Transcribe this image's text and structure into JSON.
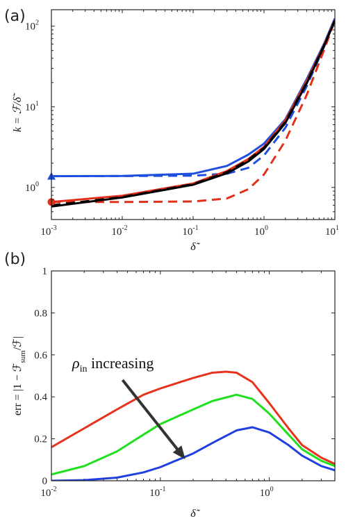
{
  "chart_data": [
    {
      "panel": "(a)",
      "type": "line",
      "xscale": "log",
      "yscale": "log",
      "xlim": [
        0.001,
        10
      ],
      "ylim": [
        0.4,
        160
      ],
      "xticks": [
        0.001,
        0.01,
        0.1,
        1,
        10
      ],
      "xtick_labels": [
        [
          "10",
          "-3"
        ],
        [
          "10",
          "-2"
        ],
        [
          "10",
          "-1"
        ],
        [
          "10",
          "0"
        ],
        [
          "10",
          "1"
        ]
      ],
      "yticks": [
        1,
        10,
        100
      ],
      "ytick_labels": [
        [
          "10",
          "0"
        ],
        [
          "10",
          "1"
        ],
        [
          "10",
          "2"
        ]
      ],
      "xlabel": "δ̃",
      "ylabel": "k = ℱ/δ̃",
      "grid": false,
      "series": [
        {
          "color": "#1f4fe0",
          "dash": "solid",
          "points": [
            [
              0.001,
              1.38
            ],
            [
              0.01,
              1.39
            ],
            [
              0.1,
              1.48
            ],
            [
              0.3,
              1.85
            ],
            [
              0.6,
              2.55
            ],
            [
              1,
              3.5
            ],
            [
              2,
              7.0
            ],
            [
              4,
              22
            ],
            [
              7,
              60
            ],
            [
              10,
              125
            ]
          ],
          "marker": "triangle",
          "marker_at": [
            0.001,
            1.38
          ]
        },
        {
          "color": "#1f4fe0",
          "dash": "dashed",
          "points": [
            [
              0.001,
              1.38
            ],
            [
              0.01,
              1.385
            ],
            [
              0.1,
              1.4
            ],
            [
              0.3,
              1.48
            ],
            [
              0.6,
              1.75
            ],
            [
              1,
              2.5
            ],
            [
              2,
              5.5
            ],
            [
              4,
              18
            ],
            [
              7,
              55
            ],
            [
              10,
              122
            ]
          ]
        },
        {
          "color": "#e2301b",
          "dash": "solid",
          "points": [
            [
              0.001,
              0.66
            ],
            [
              0.01,
              0.79
            ],
            [
              0.1,
              1.12
            ],
            [
              0.3,
              1.6
            ],
            [
              0.6,
              2.25
            ],
            [
              1,
              3.2
            ],
            [
              2,
              6.8
            ],
            [
              4,
              21
            ],
            [
              7,
              58
            ],
            [
              10,
              120
            ]
          ],
          "marker": "circle",
          "marker_at": [
            0.001,
            0.66
          ]
        },
        {
          "color": "#e2301b",
          "dash": "dashed",
          "points": [
            [
              0.001,
              0.66
            ],
            [
              0.01,
              0.66
            ],
            [
              0.1,
              0.67
            ],
            [
              0.3,
              0.73
            ],
            [
              0.6,
              0.95
            ],
            [
              1,
              1.45
            ],
            [
              2,
              3.8
            ],
            [
              4,
              14
            ],
            [
              7,
              50
            ],
            [
              10,
              118
            ]
          ]
        },
        {
          "color": "#000000",
          "dash": "dashed",
          "points": [
            [
              0.001,
              0.6
            ],
            [
              0.01,
              0.76
            ],
            [
              0.1,
              1.1
            ],
            [
              0.3,
              1.55
            ],
            [
              0.6,
              2.2
            ],
            [
              1,
              3.1
            ],
            [
              2,
              6.5
            ],
            [
              4,
              20
            ],
            [
              7,
              57
            ],
            [
              10,
              119
            ]
          ]
        },
        {
          "color": "#000000",
          "dash": "solid",
          "points": [
            [
              0.001,
              0.58
            ],
            [
              0.01,
              0.75
            ],
            [
              0.1,
              1.08
            ],
            [
              0.3,
              1.5
            ],
            [
              0.6,
              2.1
            ],
            [
              1,
              3.0
            ],
            [
              2,
              6.3
            ],
            [
              4,
              19.5
            ],
            [
              7,
              56
            ],
            [
              10,
              118
            ]
          ]
        }
      ]
    },
    {
      "panel": "(b)",
      "type": "line",
      "xscale": "log",
      "yscale": "linear",
      "xlim": [
        0.01,
        4
      ],
      "ylim": [
        0,
        1
      ],
      "xticks": [
        0.01,
        0.1,
        1
      ],
      "xtick_labels": [
        [
          "10",
          "-2"
        ],
        [
          "10",
          "-1"
        ],
        [
          "10",
          "0"
        ]
      ],
      "yticks": [
        0,
        0.2,
        0.4,
        0.6,
        0.8,
        1
      ],
      "ytick_labels": [
        "0",
        "0.2",
        "0.4",
        "0.6",
        "0.8",
        "1"
      ],
      "xlabel": "δ̃",
      "ylabel": "err = |1 − ℱ_sum/ℱ|",
      "grid": false,
      "annotation": {
        "text_main": "ρ",
        "text_sub": "in",
        "text_rest": " increasing"
      },
      "arrow": {
        "from": [
          0.045,
          0.48
        ],
        "to": [
          0.165,
          0.11
        ]
      },
      "series": [
        {
          "color": "#e8321e",
          "points": [
            [
              0.01,
              0.16
            ],
            [
              0.02,
              0.25
            ],
            [
              0.04,
              0.34
            ],
            [
              0.07,
              0.41
            ],
            [
              0.1,
              0.44
            ],
            [
              0.2,
              0.49
            ],
            [
              0.3,
              0.515
            ],
            [
              0.4,
              0.52
            ],
            [
              0.5,
              0.515
            ],
            [
              0.7,
              0.47
            ],
            [
              1,
              0.37
            ],
            [
              1.5,
              0.25
            ],
            [
              2,
              0.17
            ],
            [
              3,
              0.11
            ],
            [
              4,
              0.08
            ]
          ]
        },
        {
          "color": "#1fe01f",
          "points": [
            [
              0.01,
              0.03
            ],
            [
              0.02,
              0.07
            ],
            [
              0.04,
              0.14
            ],
            [
              0.07,
              0.22
            ],
            [
              0.1,
              0.27
            ],
            [
              0.2,
              0.34
            ],
            [
              0.3,
              0.38
            ],
            [
              0.5,
              0.41
            ],
            [
              0.7,
              0.39
            ],
            [
              1,
              0.32
            ],
            [
              1.5,
              0.22
            ],
            [
              2,
              0.15
            ],
            [
              3,
              0.095
            ],
            [
              4,
              0.07
            ]
          ]
        },
        {
          "color": "#1f3fe0",
          "points": [
            [
              0.01,
              0.0
            ],
            [
              0.02,
              0.003
            ],
            [
              0.04,
              0.015
            ],
            [
              0.07,
              0.04
            ],
            [
              0.1,
              0.065
            ],
            [
              0.2,
              0.13
            ],
            [
              0.3,
              0.18
            ],
            [
              0.5,
              0.24
            ],
            [
              0.7,
              0.255
            ],
            [
              1,
              0.23
            ],
            [
              1.5,
              0.17
            ],
            [
              2,
              0.12
            ],
            [
              3,
              0.07
            ],
            [
              4,
              0.05
            ]
          ]
        }
      ]
    }
  ]
}
